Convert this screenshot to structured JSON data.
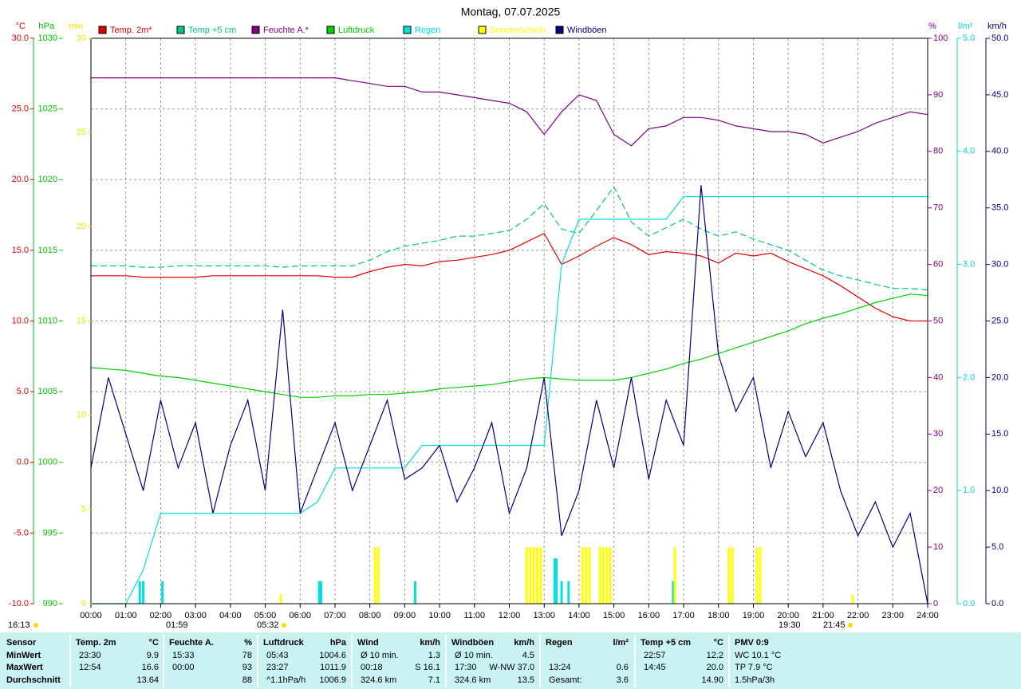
{
  "chart_data": {
    "type": "line",
    "title": "Montag, 07.07.2025",
    "x": [
      0,
      0.5,
      1,
      1.5,
      2,
      2.5,
      3,
      3.5,
      4,
      4.5,
      5,
      5.5,
      6,
      6.5,
      7,
      7.5,
      8,
      8.5,
      9,
      9.5,
      10,
      10.5,
      11,
      11.5,
      12,
      12.5,
      13,
      13.5,
      14,
      14.5,
      15,
      15.5,
      16,
      16.5,
      17,
      17.5,
      18,
      18.5,
      19,
      19.5,
      20,
      20.5,
      21,
      21.5,
      22,
      22.5,
      23,
      23.5,
      24
    ],
    "xlim": [
      0,
      24
    ],
    "xticks": [
      {
        "value": 0,
        "label": "00:00"
      },
      {
        "value": 1,
        "label": "01:00"
      },
      {
        "value": 2,
        "label": "02:00"
      },
      {
        "value": 3,
        "label": "03:00"
      },
      {
        "value": 4,
        "label": "04:00"
      },
      {
        "value": 5,
        "label": "05:00"
      },
      {
        "value": 6,
        "label": "06:00"
      },
      {
        "value": 7,
        "label": "07:00"
      },
      {
        "value": 8,
        "label": "08:00"
      },
      {
        "value": 9,
        "label": "09:00"
      },
      {
        "value": 10,
        "label": "10:00"
      },
      {
        "value": 11,
        "label": "11:00"
      },
      {
        "value": 12,
        "label": "12:00"
      },
      {
        "value": 13,
        "label": "13:00"
      },
      {
        "value": 14,
        "label": "14:00"
      },
      {
        "value": 15,
        "label": "15:00"
      },
      {
        "value": 16,
        "label": "16:00"
      },
      {
        "value": 17,
        "label": "17:00"
      },
      {
        "value": 18,
        "label": "18:00"
      },
      {
        "value": 19,
        "label": "19:00"
      },
      {
        "value": 20,
        "label": "20:00"
      },
      {
        "value": 21,
        "label": "21:00"
      },
      {
        "value": 22,
        "label": "22:00"
      },
      {
        "value": 23,
        "label": "23:00"
      },
      {
        "value": 24,
        "label": "24:00"
      }
    ],
    "grid": true,
    "axes": [
      {
        "label": "°C",
        "color": "#e00000",
        "ylim": [
          -10,
          30
        ],
        "yticks": [
          {
            "value": -10,
            "label": "-10.0"
          },
          {
            "value": -5,
            "label": "-5.0"
          },
          {
            "value": 0,
            "label": "0.0"
          },
          {
            "value": 5,
            "label": "5.0"
          },
          {
            "value": 10,
            "label": "10.0"
          },
          {
            "value": 15,
            "label": "15.0"
          },
          {
            "value": 20,
            "label": "20.0"
          },
          {
            "value": 25,
            "label": "25.0"
          },
          {
            "value": 30,
            "label": "30.0"
          }
        ]
      },
      {
        "label": "hPa",
        "color": "#00c000",
        "ylim": [
          990,
          1030
        ],
        "yticks": [
          990,
          995,
          1000,
          1005,
          1010,
          1015,
          1020,
          1025,
          1030
        ]
      },
      {
        "label": "min",
        "color": "#e8e800",
        "ylim": [
          0,
          30
        ],
        "yticks": [
          0,
          5,
          10,
          15,
          20,
          25,
          30
        ]
      },
      {
        "label": "%",
        "color": "#800080",
        "ylim": [
          0,
          100
        ],
        "yticks": [
          0,
          10,
          20,
          30,
          40,
          50,
          60,
          70,
          80,
          90,
          100
        ]
      },
      {
        "label": "l/m²",
        "color": "#00d8d8",
        "ylim": [
          0,
          5
        ],
        "yticks": [
          {
            "value": 0,
            "label": "0.0"
          },
          {
            "value": 1,
            "label": "1.0"
          },
          {
            "value": 2,
            "label": "2.0"
          },
          {
            "value": 3,
            "label": "3.0"
          },
          {
            "value": 4,
            "label": "4.0"
          },
          {
            "value": 5,
            "label": "5.0"
          }
        ]
      },
      {
        "label": "km/h",
        "color": "#000080",
        "ylim": [
          0,
          50
        ],
        "yticks": [
          {
            "value": 0,
            "label": "0.0"
          },
          {
            "value": 5,
            "label": "5.0"
          },
          {
            "value": 10,
            "label": "10.0"
          },
          {
            "value": 15,
            "label": "15.0"
          },
          {
            "value": 20,
            "label": "20.0"
          },
          {
            "value": 25,
            "label": "25.0"
          },
          {
            "value": 30,
            "label": "30.0"
          },
          {
            "value": 35,
            "label": "35.0"
          },
          {
            "value": 40,
            "label": "40.0"
          },
          {
            "value": 45,
            "label": "45.0"
          },
          {
            "value": 50,
            "label": "50.0"
          }
        ]
      }
    ],
    "series": [
      {
        "name": "Temp. 2m*",
        "color": "#e00000",
        "axis": 0,
        "values": [
          13.2,
          13.2,
          13.2,
          13.1,
          13.1,
          13.1,
          13.1,
          13.2,
          13.2,
          13.2,
          13.2,
          13.2,
          13.2,
          13.2,
          13.1,
          13.1,
          13.5,
          13.8,
          14.0,
          13.9,
          14.2,
          14.3,
          14.5,
          14.7,
          15.0,
          15.6,
          16.2,
          14.0,
          14.6,
          15.3,
          15.9,
          15.4,
          14.7,
          14.9,
          14.8,
          14.6,
          14.1,
          14.8,
          14.6,
          14.8,
          14.2,
          13.7,
          13.2,
          12.5,
          11.7,
          10.9,
          10.3,
          10.0,
          10.0
        ]
      },
      {
        "name": "Temp +5 cm",
        "color": "#00c880",
        "axis": 0,
        "dash": true,
        "values": [
          13.9,
          13.9,
          13.9,
          13.8,
          13.8,
          13.9,
          13.9,
          13.9,
          13.9,
          13.9,
          13.9,
          13.8,
          13.9,
          13.9,
          13.9,
          13.9,
          14.3,
          14.9,
          15.3,
          15.5,
          15.7,
          16.0,
          16.0,
          16.2,
          16.4,
          17.2,
          18.3,
          16.5,
          16.2,
          17.8,
          19.5,
          17.0,
          16.0,
          16.6,
          17.2,
          16.5,
          16.0,
          16.3,
          15.8,
          15.4,
          15.0,
          14.3,
          13.6,
          13.2,
          12.9,
          12.6,
          12.3,
          12.3,
          12.2
        ]
      },
      {
        "name": "Feuchte A.*",
        "color": "#800080",
        "axis": 3,
        "values": [
          93,
          93,
          93,
          93,
          93,
          93,
          93,
          93,
          93,
          93,
          93,
          93,
          93,
          93,
          93,
          92.5,
          92,
          91.5,
          91.5,
          90.5,
          90.5,
          90,
          89.5,
          89,
          88.5,
          87,
          83,
          87,
          90,
          89,
          83,
          81,
          84,
          84.5,
          86,
          86,
          85.5,
          84.5,
          84,
          83.5,
          83.5,
          83,
          81.5,
          82.5,
          83.5,
          85,
          86,
          87,
          86.5
        ]
      },
      {
        "name": "Luftdruck",
        "color": "#00d000",
        "axis": 1,
        "values": [
          1006.7,
          1006.6,
          1006.5,
          1006.3,
          1006.1,
          1006.0,
          1005.8,
          1005.6,
          1005.4,
          1005.2,
          1005.0,
          1004.8,
          1004.6,
          1004.6,
          1004.7,
          1004.7,
          1004.8,
          1004.8,
          1004.9,
          1005.0,
          1005.2,
          1005.3,
          1005.4,
          1005.5,
          1005.7,
          1005.9,
          1006.0,
          1005.9,
          1005.8,
          1005.8,
          1005.8,
          1006.0,
          1006.3,
          1006.6,
          1007.0,
          1007.3,
          1007.7,
          1008.1,
          1008.5,
          1008.9,
          1009.3,
          1009.8,
          1010.2,
          1010.5,
          1010.9,
          1011.3,
          1011.6,
          1011.9,
          1011.8
        ]
      },
      {
        "name": "Regen",
        "color": "#00e0e0",
        "axis": 4,
        "values": [
          0,
          0,
          0,
          0.3,
          0.8,
          0.8,
          0.8,
          0.8,
          0.8,
          0.8,
          0.8,
          0.8,
          0.8,
          0.9,
          1.2,
          1.2,
          1.2,
          1.2,
          1.2,
          1.4,
          1.4,
          1.4,
          1.4,
          1.4,
          1.4,
          1.4,
          1.4,
          3.0,
          3.4,
          3.4,
          3.4,
          3.4,
          3.4,
          3.4,
          3.6,
          3.6,
          3.6,
          3.6,
          3.6,
          3.6,
          3.6,
          3.6,
          3.6,
          3.6,
          3.6,
          3.6,
          3.6,
          3.6,
          3.6
        ],
        "bars": {
          "x": [
            1.4,
            1.5,
            2.05,
            6.55,
            6.6,
            9.3,
            13.3,
            13.35,
            13.5,
            13.7,
            16.7
          ],
          "values": [
            0.2,
            0.2,
            0.2,
            0.2,
            0.2,
            0.2,
            0.4,
            0.4,
            0.2,
            0.2,
            0.2
          ]
        }
      },
      {
        "name": "Sonnenschein",
        "color": "#ffff00",
        "axis": 2,
        "kind": "bar",
        "x": [
          5.45,
          8.15,
          8.25,
          12.5,
          12.6,
          12.7,
          12.8,
          12.9,
          14.1,
          14.2,
          14.3,
          14.6,
          14.7,
          14.8,
          14.9,
          16.75,
          18.3,
          18.4,
          19.1,
          19.2,
          21.85
        ],
        "values": [
          0.5,
          3,
          3,
          3,
          3,
          3,
          3,
          3,
          3,
          3,
          3,
          3,
          3,
          3,
          3,
          3,
          3,
          3,
          3,
          3,
          0.5
        ]
      },
      {
        "name": "Windböen",
        "color": "#000080",
        "axis": 5,
        "values": [
          12,
          20,
          15,
          10,
          18,
          12,
          16,
          8,
          14,
          18,
          10,
          26,
          8,
          12,
          16,
          10,
          14,
          18,
          11,
          12,
          14,
          9,
          12,
          16,
          8,
          12,
          20,
          6,
          10,
          18,
          12,
          20,
          11,
          18,
          14,
          37,
          22,
          17,
          20,
          12,
          17,
          13,
          16,
          10,
          6,
          9,
          5,
          8,
          0
        ]
      }
    ],
    "astro": [
      "16:13",
      "01:59",
      "05:32",
      "19:30",
      "21:45"
    ]
  },
  "table": {
    "columns": [
      {
        "name": "Sensor"
      },
      {
        "name": "Temp. 2m",
        "unit": "°C"
      },
      {
        "name": "Feuchte A.",
        "unit": "%"
      },
      {
        "name": "Luftdruck",
        "unit": "hPa"
      },
      {
        "name": "Wind",
        "unit": "km/h"
      },
      {
        "name": "Windböen",
        "unit": "km/h"
      },
      {
        "name": "Regen",
        "unit": "l/m²"
      },
      {
        "name": "Temp +5 cm",
        "unit": "°C"
      },
      {
        "name": "PMV 0:9"
      }
    ],
    "rows": [
      {
        "label": "MinWert",
        "cells": [
          [
            "23:30",
            "9.9"
          ],
          [
            "15:33",
            "78"
          ],
          [
            "05:43",
            "1004.6"
          ],
          [
            "Ø 10 min.",
            "1.3"
          ],
          [
            "Ø 10 min.",
            "4.5"
          ],
          [
            null,
            null
          ],
          [
            "22:57",
            "12.2"
          ],
          [
            "WC 10.1 °C"
          ]
        ]
      },
      {
        "label": "MaxWert",
        "cells": [
          [
            "12:54",
            "16.6"
          ],
          [
            "00:00",
            "93"
          ],
          [
            "23:27",
            "1011.9"
          ],
          [
            "00:18",
            "S 16.1"
          ],
          [
            "17:30",
            "W-NW 37.0"
          ],
          [
            "13:24",
            "0.6"
          ],
          [
            "14:45",
            "20.0"
          ],
          [
            "TP 7.9 °C"
          ]
        ]
      },
      {
        "label": "Durchschnitt",
        "cells": [
          [
            null,
            "13.64"
          ],
          [
            null,
            "88"
          ],
          [
            "^1.1hPa/h",
            "1006.9"
          ],
          [
            "324.6 km",
            "7.1"
          ],
          [
            "324.6 km",
            "13.5"
          ],
          [
            "Gesamt:",
            "3.6"
          ],
          [
            null,
            "14.90"
          ],
          [
            "1.5hPa/3h"
          ]
        ]
      }
    ]
  }
}
